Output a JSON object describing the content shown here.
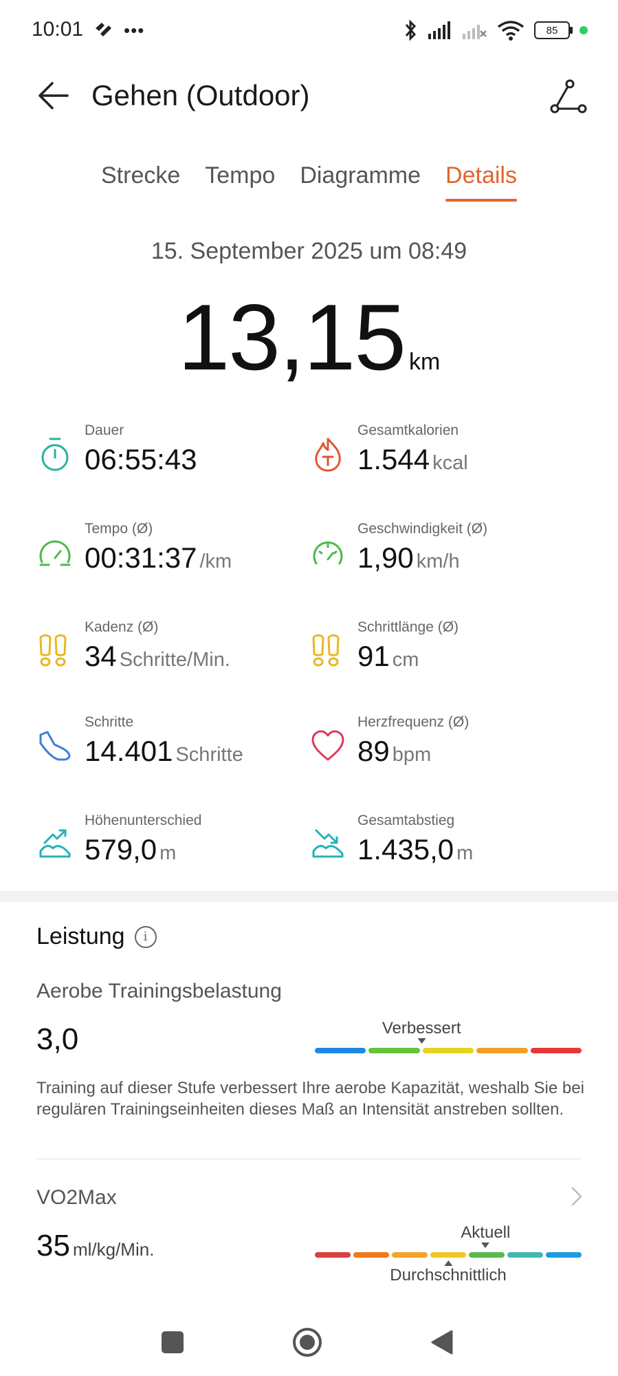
{
  "status_bar": {
    "time": "10:01",
    "battery": "85"
  },
  "header": {
    "title": "Gehen (Outdoor)"
  },
  "tabs": [
    {
      "label": "Strecke",
      "active": false
    },
    {
      "label": "Tempo",
      "active": false
    },
    {
      "label": "Diagramme",
      "active": false
    },
    {
      "label": "Details",
      "active": true
    }
  ],
  "summary": {
    "date": "15. September 2025 um 08:49",
    "distance": "13,15",
    "distance_unit": "km"
  },
  "metrics": [
    {
      "label": "Dauer",
      "value": "06:55:43",
      "unit": "",
      "icon": "stopwatch-icon"
    },
    {
      "label": "Gesamtkalorien",
      "value": "1.544",
      "unit": "kcal",
      "icon": "calories-icon"
    },
    {
      "label": "Tempo (Ø)",
      "value": "00:31:37",
      "unit": "/km",
      "icon": "pace-gauge-icon"
    },
    {
      "label": "Geschwindigkeit (Ø)",
      "value": "1,90",
      "unit": "km/h",
      "icon": "speed-gauge-icon"
    },
    {
      "label": "Kadenz (Ø)",
      "value": "34",
      "unit": "Schritte/Min.",
      "icon": "footprints-icon"
    },
    {
      "label": "Schrittlänge (Ø)",
      "value": "91",
      "unit": "cm",
      "icon": "footprints-icon"
    },
    {
      "label": "Schritte",
      "value": "14.401",
      "unit": "Schritte",
      "icon": "shoe-icon"
    },
    {
      "label": "Herzfrequenz (Ø)",
      "value": "89",
      "unit": "bpm",
      "icon": "heart-icon"
    },
    {
      "label": "Höhenunterschied",
      "value": "579,0",
      "unit": "m",
      "icon": "elevation-up-icon"
    },
    {
      "label": "Gesamtabstieg",
      "value": "1.435,0",
      "unit": "m",
      "icon": "elevation-down-icon"
    }
  ],
  "performance": {
    "title": "Leistung",
    "aerobic": {
      "label": "Aerobe Trainingsbelastung",
      "value": "3,0",
      "scale_label": "Verbessert",
      "level_fraction": 0.4,
      "colors": [
        "#1e88e5",
        "#66c23a",
        "#e8d11f",
        "#f0a02a",
        "#e53935"
      ],
      "description": "Training auf dieser Stufe verbessert Ihre aerobe Kapazität, weshalb Sie bei regulären Trainingseinheiten dieses Maß an Intensität anstreben sollten."
    },
    "vo2max": {
      "label": "VO2Max",
      "value": "35",
      "unit": "ml/kg/Min.",
      "current_label": "Aktuell",
      "average_label": "Durchschnittlich",
      "current_fraction": 0.64,
      "average_fraction": 0.5,
      "colors": [
        "#d94040",
        "#f07a1a",
        "#f2a42a",
        "#f2c61f",
        "#5cb84a",
        "#43b8b0",
        "#1e9be0"
      ]
    }
  }
}
